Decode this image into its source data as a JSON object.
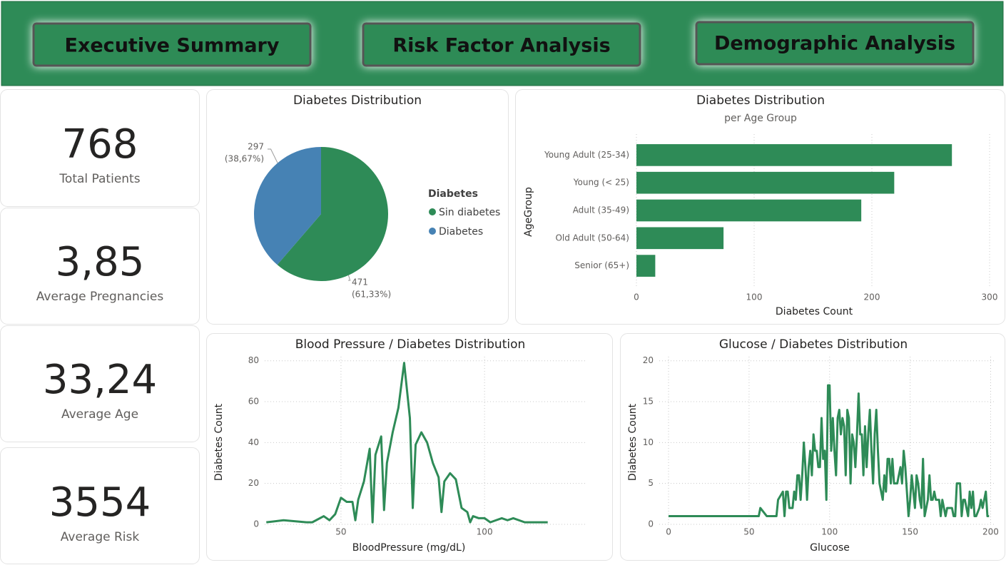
{
  "header": {
    "buttons": [
      "Executive Summary",
      "Risk Factor Analysis",
      "Demographic Analysis"
    ]
  },
  "kpis": [
    {
      "value": "768",
      "label": "Total Patients"
    },
    {
      "value": "3,85",
      "label": "Average Pregnancies"
    },
    {
      "value": "33,24",
      "label": "Average Age"
    },
    {
      "value": "3554",
      "label": "Average Risk"
    }
  ],
  "chart_data": [
    {
      "type": "pie",
      "title": "Diabetes Distribution",
      "legend_title": "Diabetes",
      "categories": [
        "Sin diabetes",
        "Diabetes"
      ],
      "values": [
        471,
        297
      ],
      "value_labels": [
        "471",
        "297"
      ],
      "percent_labels": [
        "(61,33%)",
        "(38,67%)"
      ],
      "colors": [
        "#2e8b57",
        "#4682b4"
      ],
      "legend": "right"
    },
    {
      "type": "bar",
      "orientation": "horizontal",
      "title": "Diabetes Distribution",
      "subtitle": "per Age Group",
      "x_label": "Diabetes Count",
      "y_label": "AgeGroup",
      "categories": [
        "Young Adult (25-34)",
        "Young (< 25)",
        "Adult (35-49)",
        "Old Adult (50-64)",
        "Senior (65+)"
      ],
      "values": [
        268,
        219,
        191,
        74,
        16
      ],
      "color": "#2e8b57",
      "xlim": [
        0,
        300
      ],
      "xticks": [
        0,
        100,
        200,
        300
      ],
      "grid": true
    },
    {
      "type": "line",
      "title": "Blood Pressure / Diabetes Distribution",
      "x_label": "BloodPressure (mg/dL)",
      "y_label": "Diabetes Count",
      "color": "#2e8b57",
      "x": [
        24,
        30,
        38,
        40,
        44,
        46,
        48,
        50,
        52,
        54,
        55,
        56,
        58,
        60,
        61,
        62,
        64,
        65,
        66,
        68,
        70,
        72,
        74,
        75,
        76,
        78,
        80,
        82,
        84,
        85,
        86,
        88,
        90,
        92,
        94,
        95,
        96,
        98,
        100,
        102,
        104,
        106,
        108,
        110,
        114,
        122
      ],
      "values": [
        1,
        2,
        1,
        1,
        4,
        2,
        5,
        13,
        11,
        11,
        2,
        12,
        21,
        37,
        1,
        34,
        43,
        7,
        30,
        45,
        57,
        79,
        52,
        8,
        39,
        45,
        40,
        30,
        23,
        6,
        21,
        25,
        22,
        8,
        6,
        1,
        4,
        3,
        3,
        1,
        2,
        3,
        2,
        3,
        1,
        1
      ],
      "xlim": [
        13,
        135
      ],
      "xticks": [
        50,
        100
      ],
      "ylim": [
        0,
        82
      ],
      "yticks": [
        0,
        20,
        40,
        60,
        80
      ],
      "grid": true
    },
    {
      "type": "line",
      "title": "Glucose / Diabetes Distribution",
      "x_label": "Glucose",
      "y_label": "Diabetes Count",
      "color": "#2e8b57",
      "x": [
        0,
        44,
        56,
        57,
        61,
        62,
        65,
        67,
        68,
        71,
        72,
        73,
        74,
        75,
        76,
        77,
        78,
        79,
        80,
        81,
        82,
        83,
        84,
        85,
        86,
        87,
        88,
        89,
        90,
        91,
        92,
        93,
        94,
        95,
        96,
        97,
        98,
        99,
        100,
        101,
        102,
        103,
        104,
        105,
        106,
        107,
        108,
        109,
        110,
        111,
        112,
        113,
        114,
        115,
        116,
        117,
        118,
        119,
        120,
        121,
        122,
        123,
        124,
        125,
        126,
        127,
        128,
        129,
        130,
        131,
        132,
        133,
        134,
        135,
        136,
        137,
        138,
        139,
        140,
        141,
        142,
        143,
        144,
        145,
        146,
        147,
        148,
        149,
        150,
        151,
        152,
        153,
        154,
        155,
        156,
        157,
        158,
        159,
        160,
        161,
        162,
        163,
        164,
        165,
        166,
        167,
        168,
        169,
        170,
        171,
        172,
        173,
        174,
        175,
        176,
        177,
        178,
        179,
        180,
        181,
        182,
        183,
        184,
        186,
        187,
        188,
        189,
        190,
        191,
        193,
        194,
        195,
        196,
        197,
        198,
        199
      ],
      "values": [
        1,
        1,
        1,
        2,
        1,
        1,
        1,
        1,
        3,
        4,
        1,
        4,
        4,
        2,
        2,
        2,
        4,
        3,
        6,
        6,
        3,
        6,
        10,
        7,
        3,
        7,
        9,
        6,
        11,
        9,
        9,
        7,
        7,
        13,
        8,
        9,
        3,
        17,
        17,
        9,
        13,
        9,
        6,
        13,
        14,
        11,
        13,
        12,
        6,
        14,
        13,
        5,
        11,
        10,
        7,
        11,
        16,
        11,
        11,
        6,
        12,
        7,
        11,
        14,
        9,
        5,
        11,
        14,
        9,
        5,
        4,
        3,
        6,
        4,
        8,
        8,
        5,
        8,
        5,
        5,
        5,
        6,
        7,
        5,
        9,
        7,
        4,
        1,
        3,
        6,
        4,
        2,
        6,
        5,
        3,
        2,
        8,
        1,
        2,
        3,
        6,
        3,
        3,
        4,
        3,
        3,
        3,
        1,
        3,
        2,
        1,
        2,
        2,
        2,
        2,
        1,
        1,
        5,
        5,
        5,
        1,
        3,
        3,
        1,
        4,
        2,
        4,
        1,
        1,
        2,
        3,
        2,
        3,
        4,
        1,
        1
      ],
      "xlim": [
        -4,
        202
      ],
      "xticks": [
        0,
        50,
        100,
        150,
        200
      ],
      "ylim": [
        0,
        20.5
      ],
      "yticks": [
        0,
        5,
        10,
        15,
        20
      ],
      "grid": true
    }
  ]
}
